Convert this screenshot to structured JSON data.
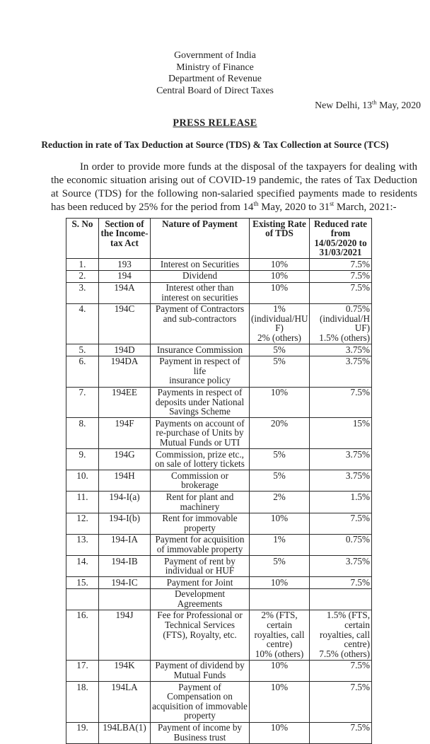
{
  "colors": {
    "page_background": "#ffffff",
    "text": "#222222",
    "table_border": "#2b2b2b"
  },
  "header": {
    "org_lines": [
      "Government of India",
      "Ministry of Finance",
      "Department of Revenue",
      "Central Board of Direct Taxes"
    ],
    "dateline": {
      "pre": "New Delhi, 13",
      "sup": "th",
      "post": " May, 2020"
    },
    "press_release_label": "PRESS RELEASE",
    "title": "Reduction in rate of Tax Deduction at Source (TDS) & Tax Collection at Source (TCS)"
  },
  "intro": {
    "seg1": "In order to provide more funds at the disposal of the taxpayers for dealing with the economic situation arising out of COVID-19 pandemic, the rates of Tax Deduction at Source (TDS) for the following non-salaried specified payments made to residents has been reduced by 25% for the period from 14",
    "sup1": "th",
    "seg2": " May, 2020 to 31",
    "sup2": "st",
    "seg3": " March, 2021:-"
  },
  "table": {
    "headers": [
      "S. No",
      "Section of\nthe Income-\ntax Act",
      "Nature of Payment",
      "Existing Rate\nof TDS",
      "Reduced rate\nfrom\n14/05/2020 to\n31/03/2021"
    ],
    "rows": [
      {
        "cells": [
          "1.",
          "193",
          "Interest on Securities",
          "10%",
          "7.5%"
        ]
      },
      {
        "cells": [
          "2.",
          "194",
          "Dividend",
          "10%",
          "7.5%"
        ]
      },
      {
        "cells": [
          "3.",
          "194A",
          "Interest other than\ninterest on securities",
          "10%",
          "7.5%"
        ]
      },
      {
        "cells": [
          "4.",
          "194C",
          "Payment of Contractors\nand sub-contractors",
          "1%\n(individual/HU\nF)\n2% (others)",
          "0.75%\n(individual/H\nUF)\n1.5% (others)"
        ]
      },
      {
        "cells": [
          "5.",
          "194D",
          "Insurance Commission",
          "5%",
          "3.75%"
        ]
      },
      {
        "cells": [
          "6.",
          "194DA",
          "Payment in respect of life\ninsurance policy",
          "5%",
          "3.75%"
        ]
      },
      {
        "cells": [
          "7.",
          "194EE",
          "Payments in respect of\ndeposits under National\nSavings Scheme",
          "10%",
          "7.5%"
        ]
      },
      {
        "cells": [
          "8.",
          "194F",
          "Payments on account of\nre-purchase of Units by\nMutual Funds or UTI",
          "20%",
          "15%"
        ]
      },
      {
        "cells": [
          "9.",
          "194G",
          "Commission, prize etc.,\non sale of lottery tickets",
          "5%",
          "3.75%"
        ]
      },
      {
        "cells": [
          "10.",
          "194H",
          "Commission or\nbrokerage",
          "5%",
          "3.75%"
        ]
      },
      {
        "cells": [
          "11.",
          "194-I(a)",
          "Rent for plant and\nmachinery",
          "2%",
          "1.5%"
        ]
      },
      {
        "cells": [
          "12.",
          "194-I(b)",
          "Rent for immovable\nproperty",
          "10%",
          "7.5%"
        ]
      },
      {
        "cells": [
          "13.",
          "194-IA",
          "Payment for acquisition\nof immovable property",
          "1%",
          "0.75%"
        ]
      },
      {
        "cells": [
          "14.",
          "194-IB",
          "Payment of rent by\nindividual or HUF",
          "5%",
          "3.75%"
        ]
      },
      {
        "cells": [
          "15.",
          "194-IC",
          "Payment for Joint",
          "10%",
          "7.5%"
        ]
      },
      {
        "cells": [
          "",
          "",
          "Development\nAgreements",
          "",
          ""
        ]
      },
      {
        "cells": [
          "16.",
          "194J",
          "Fee for Professional or\nTechnical Services\n(FTS), Royalty, etc.",
          "2% (FTS,\ncertain\nroyalties, call\ncentre)\n10% (others)",
          "1.5% (FTS,\ncertain\nroyalties, call\ncentre)\n7.5% (others)"
        ]
      },
      {
        "cells": [
          "17.",
          "194K",
          "Payment of dividend by\nMutual Funds",
          "10%",
          "7.5%"
        ]
      },
      {
        "cells": [
          "18.",
          "194LA",
          "Payment of\nCompensation on\nacquisition of immovable\nproperty",
          "10%",
          "7.5%"
        ]
      },
      {
        "cells": [
          "19.",
          "194LBA(1)",
          "Payment of income by\nBusiness trust",
          "10%",
          "7.5%"
        ]
      }
    ]
  }
}
